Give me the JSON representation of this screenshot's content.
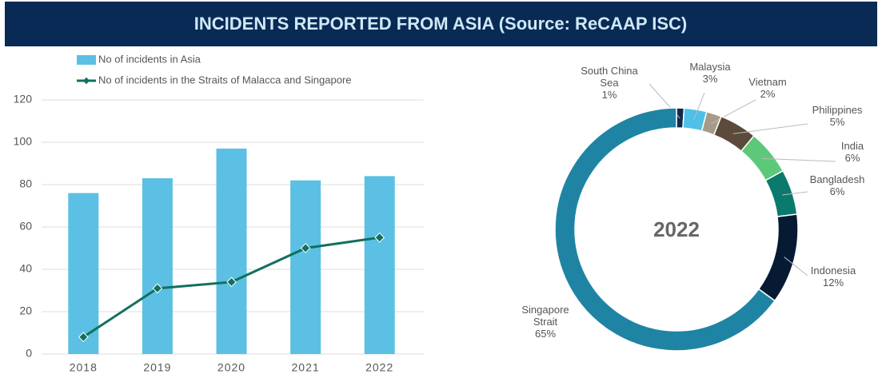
{
  "title": "INCIDENTS REPORTED FROM ASIA (Source: ReCAAP ISC)",
  "chart_data": [
    {
      "type": "bar",
      "categories": [
        "2018",
        "2019",
        "2020",
        "2021",
        "2022"
      ],
      "series": [
        {
          "name": "No of incidents in Asia",
          "type": "bar",
          "color": "#5bc0e4",
          "values": [
            76,
            83,
            97,
            82,
            84
          ]
        },
        {
          "name": "No of incidents in the Straits of Malacca and Singapore",
          "type": "line",
          "color": "#13705f",
          "values": [
            8,
            31,
            34,
            50,
            55
          ]
        }
      ],
      "ylim": [
        0,
        120
      ],
      "yticks": [
        0,
        20,
        40,
        60,
        80,
        100,
        120
      ],
      "grid": true,
      "legend": "top"
    },
    {
      "type": "donut",
      "center_label": "2022",
      "categories": [
        "South China Sea",
        "Malaysia",
        "Vietnam",
        "Philippines",
        "India",
        "Bangladesh",
        "Indonesia",
        "Singapore Strait"
      ],
      "values": [
        1,
        3,
        2,
        5,
        6,
        6,
        12,
        65
      ],
      "value_labels": [
        "1%",
        "3%",
        "2%",
        "5%",
        "6%",
        "6%",
        "12%",
        "65%"
      ],
      "colors": [
        "#0f2a4a",
        "#4fc0e8",
        "#a89a88",
        "#5c4a3a",
        "#5ec87a",
        "#0b7a6e",
        "#061a33",
        "#1f84a3"
      ]
    }
  ]
}
